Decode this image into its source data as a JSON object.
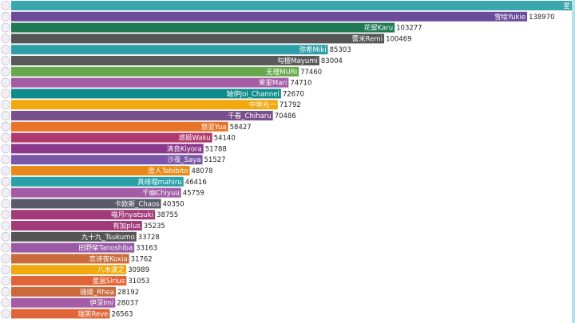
{
  "chart_data": {
    "type": "bar",
    "orientation": "horizontal",
    "title": "",
    "xlabel": "",
    "ylabel": "",
    "xlim": [
      0,
      151000
    ],
    "grid": false,
    "legend": "none",
    "categories": [
      "星",
      "雪绘Yukie",
      "花留Karu",
      "蕾米Remi",
      "弥希Miki",
      "勾檀Mayumi",
      "无理MURI",
      "茉里Mari",
      "轴伊Joi_Channel",
      "中单光一",
      "千春_Chiharu",
      "悠亚Yua",
      "惑姬Waku",
      "清良Kiyora",
      "沙夜_Saya",
      "度人Tabibito",
      "真绯瑠mahiru",
      "千幽Chiyuu",
      "卡欧斯_Chaos",
      "喵月nyatsuki",
      "有加plus",
      "九十九_Tsukumo",
      "田野柴Tanoshiba",
      "恋诗夜Koxia",
      "八木波之",
      "星宸Sirius",
      "瑞娅_Rhea",
      "伊深Imi",
      "瑞芙Reve"
    ],
    "values": [
      151000,
      138970,
      103277,
      100469,
      85303,
      83004,
      77460,
      74710,
      72670,
      71792,
      70486,
      58427,
      54140,
      51788,
      51527,
      48078,
      46416,
      45759,
      40350,
      38755,
      35235,
      33728,
      33163,
      31762,
      30989,
      31053,
      28192,
      28037,
      26563
    ],
    "value_labels": [
      "",
      "138970",
      "103277",
      "100469",
      "85303",
      "83004",
      "77460",
      "74710",
      "72670",
      "71792",
      "70486",
      "58427",
      "54140",
      "51788",
      "51527",
      "48078",
      "46416",
      "45759",
      "40350",
      "38755",
      "35235",
      "33728",
      "33163",
      "31762",
      "30989",
      "31053",
      "28192",
      "28037",
      "26563"
    ],
    "colors": [
      "#3aa6ad",
      "#6b4c9a",
      "#1f7a54",
      "#555555",
      "#2e9fa8",
      "#5a5a5a",
      "#67a84c",
      "#a35ca5",
      "#0e8c8c",
      "#f2a90f",
      "#7a4f8d",
      "#e8742a",
      "#b03a6e",
      "#8b3a8b",
      "#7a55a8",
      "#e88a1a",
      "#2aa1a8",
      "#a35ca5",
      "#5a5a6a",
      "#a33a7a",
      "#a33a7a",
      "#555555",
      "#9a5aa8",
      "#c86a3a",
      "#f2a90f",
      "#e0663a",
      "#c86a3a",
      "#a35ca5",
      "#e0663a"
    ]
  },
  "accent_colors": {
    "right_strip": "#b8e0e6"
  }
}
